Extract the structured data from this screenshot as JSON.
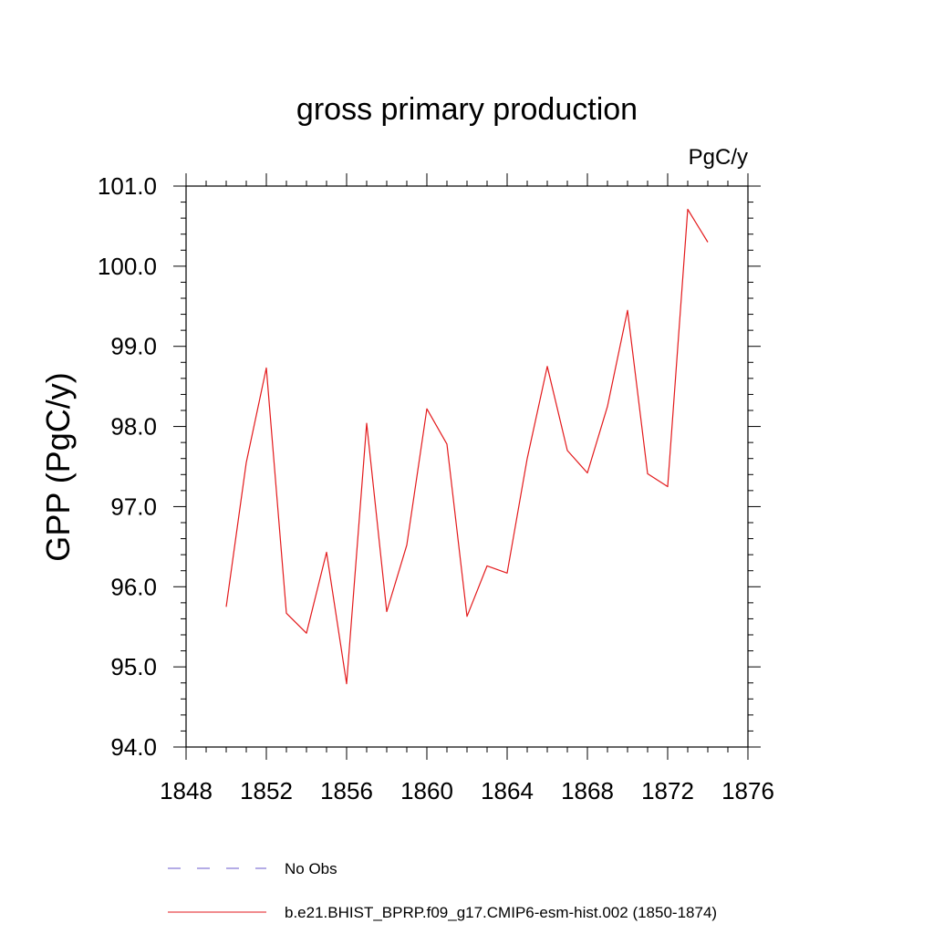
{
  "chart_data": {
    "type": "line",
    "title": "gross primary production",
    "units_label": "PgC/y",
    "ylabel": "GPP  (PgC/y)",
    "xlabel": "",
    "xlim": [
      1848,
      1876
    ],
    "ylim": [
      94.0,
      101.0
    ],
    "x_ticks": [
      "1848",
      "1852",
      "1856",
      "1860",
      "1864",
      "1868",
      "1872",
      "1876"
    ],
    "y_ticks": [
      "94.0",
      "95.0",
      "96.0",
      "97.0",
      "98.0",
      "99.0",
      "100.0",
      "101.0"
    ],
    "grid": false,
    "series": [
      {
        "name": "b.e21.BHIST_BPRP.f09_g17.CMIP6-esm-hist.002 (1850-1874)",
        "color": "#e31a1c",
        "style": "solid",
        "x": [
          1850,
          1851,
          1852,
          1853,
          1854,
          1855,
          1856,
          1857,
          1858,
          1859,
          1860,
          1861,
          1862,
          1863,
          1864,
          1865,
          1866,
          1867,
          1868,
          1869,
          1870,
          1871,
          1872,
          1873,
          1874
        ],
        "y": [
          95.75,
          97.55,
          98.73,
          95.67,
          95.42,
          96.43,
          94.79,
          98.04,
          95.69,
          96.52,
          98.22,
          97.78,
          95.63,
          96.26,
          96.17,
          97.6,
          98.75,
          97.7,
          97.42,
          98.25,
          99.45,
          97.41,
          97.25,
          100.71,
          100.3
        ]
      }
    ],
    "legend": [
      {
        "label": "No Obs",
        "color": "#6a5acd",
        "style": "dashed"
      },
      {
        "label": "b.e21.BHIST_BPRP.f09_g17.CMIP6-esm-hist.002 (1850-1874)",
        "color": "#e31a1c",
        "style": "solid"
      }
    ],
    "legend_position": "bottom"
  }
}
